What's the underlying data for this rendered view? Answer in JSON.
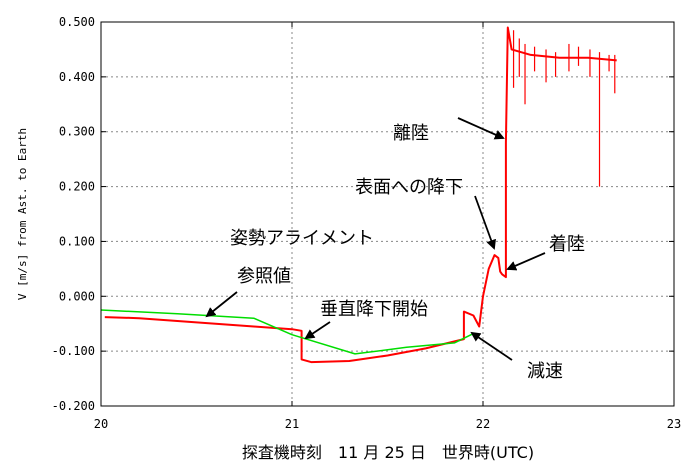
{
  "chart_data": {
    "type": "line",
    "xlabel": "探査機時刻　11 月 25 日　世界時(UTC)",
    "ylabel": "V [m/s] from Ast. to Earth",
    "xlim": [
      20,
      23
    ],
    "ylim": [
      -0.2,
      0.5
    ],
    "x_ticks": [
      "20",
      "21",
      "22",
      "23"
    ],
    "y_ticks": [
      "0.500",
      "0.400",
      "0.300",
      "0.200",
      "0.100",
      "0.000",
      "-0.100",
      "-0.200"
    ],
    "grid": true,
    "series": [
      {
        "color": "#ff0000",
        "points": [
          [
            20.02,
            -0.038
          ],
          [
            20.2,
            -0.04
          ],
          [
            20.4,
            -0.045
          ],
          [
            20.6,
            -0.05
          ],
          [
            20.8,
            -0.055
          ],
          [
            21.0,
            -0.06
          ],
          [
            21.05,
            -0.063
          ],
          [
            21.05,
            -0.115
          ],
          [
            21.1,
            -0.12
          ],
          [
            21.3,
            -0.118
          ],
          [
            21.5,
            -0.108
          ],
          [
            21.7,
            -0.095
          ],
          [
            21.9,
            -0.078
          ],
          [
            21.9,
            -0.028
          ],
          [
            21.95,
            -0.035
          ],
          [
            21.98,
            -0.055
          ],
          [
            22.0,
            0.0
          ],
          [
            22.03,
            0.05
          ],
          [
            22.06,
            0.075
          ],
          [
            22.08,
            0.07
          ],
          [
            22.09,
            0.045
          ],
          [
            22.1,
            0.04
          ],
          [
            22.12,
            0.035
          ],
          [
            22.12,
            0.28
          ],
          [
            22.13,
            0.49
          ],
          [
            22.15,
            0.45
          ],
          [
            22.25,
            0.44
          ],
          [
            22.4,
            0.435
          ],
          [
            22.55,
            0.435
          ],
          [
            22.7,
            0.43
          ]
        ]
      },
      {
        "color": "#00dd00",
        "points": [
          [
            20.0,
            -0.025
          ],
          [
            20.4,
            -0.032
          ],
          [
            20.8,
            -0.04
          ],
          [
            21.0,
            -0.07
          ],
          [
            21.33,
            -0.105
          ],
          [
            21.6,
            -0.093
          ],
          [
            21.85,
            -0.085
          ],
          [
            21.95,
            -0.068
          ]
        ]
      }
    ],
    "annotations": [
      {
        "label": "離陸",
        "x": 22.12,
        "y": 0.3
      },
      {
        "label": "表面への降下",
        "x": 22.06,
        "y": 0.09
      },
      {
        "label": "着陸",
        "x": 22.12,
        "y": 0.045
      },
      {
        "label": "姿勢アライメント",
        "x": null,
        "y": null
      },
      {
        "label": "参照値",
        "x": 20.5,
        "y": -0.035
      },
      {
        "label": "垂直降下開始",
        "x": 21.05,
        "y": -0.08
      },
      {
        "label": "減速",
        "x": 21.97,
        "y": -0.065
      }
    ]
  }
}
